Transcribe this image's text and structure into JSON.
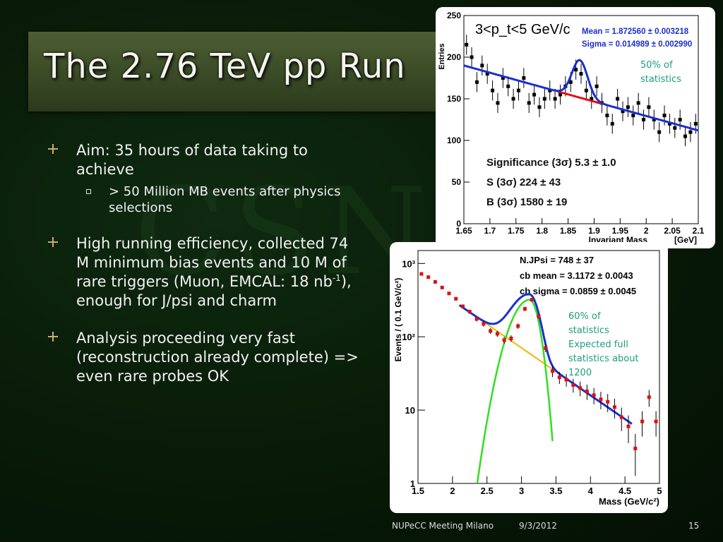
{
  "slide": {
    "title": "The 2.76 TeV pp Run",
    "watermark": "CSN",
    "bullets": [
      {
        "text": "Aim: 35 hours of data taking to achieve",
        "sub": "> 50 Million MB events after physics selections"
      },
      {
        "text_before_sup": "High running efficiency, collected 74 M minimum bias events and 10 M of rare triggers (Muon, EMCAL: 18 nb",
        "sup": "-1",
        "text_after_sup": "), enough for J/psi and charm"
      },
      {
        "text": "Analysis proceeding very fast (reconstruction already complete) => even rare probes OK"
      }
    ],
    "annotations": {
      "plot1": [
        "50% of",
        "statistics"
      ],
      "plot2": [
        "60% of",
        "statistics",
        "Expected full",
        "statistics about",
        "1200"
      ]
    },
    "footer": {
      "meeting": "NUPeCC Meeting Milano",
      "date": "9/3/2012",
      "page": "15"
    },
    "colors": {
      "annotation": "#1a9e7a",
      "accent": "#c9b16a"
    }
  },
  "chart_data": [
    {
      "type": "scatter",
      "title": "3<p_t<5 GeV/c",
      "xlabel": "Invariant Mass",
      "xunit": "[GeV]",
      "ylabel": "Entries",
      "xlim": [
        1.65,
        2.1
      ],
      "ylim": [
        0,
        250
      ],
      "xticks": [
        "1.65",
        "1.7",
        "1.75",
        "1.8",
        "1.85",
        "1.9",
        "1.95",
        "2",
        "2.05",
        "2.1"
      ],
      "yticks": [
        "0",
        "50",
        "100",
        "150",
        "200",
        "250"
      ],
      "stats": [
        "Mean = 1.872560 ± 0.003218",
        "Sigma = 0.014989 ± 0.002990"
      ],
      "fit_text": [
        "Significance (3σ) 5.3 ± 1.0",
        "S (3σ) 224 ± 43",
        "B (3σ) 1580 ± 19"
      ],
      "x": [
        1.655,
        1.665,
        1.675,
        1.685,
        1.695,
        1.705,
        1.715,
        1.725,
        1.735,
        1.745,
        1.755,
        1.765,
        1.775,
        1.785,
        1.795,
        1.805,
        1.815,
        1.825,
        1.835,
        1.845,
        1.855,
        1.865,
        1.875,
        1.885,
        1.895,
        1.905,
        1.915,
        1.925,
        1.935,
        1.945,
        1.955,
        1.965,
        1.975,
        1.985,
        1.995,
        2.005,
        2.015,
        2.025,
        2.035,
        2.045,
        2.055,
        2.065,
        2.075,
        2.085,
        2.095
      ],
      "y": [
        215,
        200,
        170,
        190,
        180,
        160,
        145,
        175,
        165,
        150,
        160,
        175,
        145,
        155,
        140,
        150,
        160,
        150,
        155,
        165,
        170,
        185,
        180,
        160,
        150,
        165,
        145,
        130,
        120,
        150,
        135,
        140,
        130,
        145,
        125,
        140,
        125,
        110,
        130,
        120,
        115,
        125,
        105,
        110,
        120
      ],
      "yerr": 12,
      "fit_peak": {
        "mean": 1.87256,
        "sigma": 0.014989,
        "amp": 45
      },
      "background": {
        "y_at_xmin": 190,
        "y_at_xmax": 112
      }
    },
    {
      "type": "scatter",
      "xlabel": "Mass (GeV/c²)",
      "ylabel": "Events / ( 0.1 GeV/c²)",
      "log_y": true,
      "xlim": [
        1.5,
        5
      ],
      "ylim": [
        1,
        1500
      ],
      "xticks": [
        "1.5",
        "2",
        "2.5",
        "3",
        "3.5",
        "4",
        "4.5",
        "5"
      ],
      "yticks": [
        "1",
        "10",
        "10²",
        "10³"
      ],
      "stats": [
        "N.JPsi = 748 ± 37",
        "cb mean = 3.1172 ± 0.0043",
        "cb sigma = 0.0859 ± 0.0045"
      ],
      "x": [
        1.55,
        1.65,
        1.75,
        1.85,
        1.95,
        2.05,
        2.15,
        2.25,
        2.35,
        2.45,
        2.55,
        2.65,
        2.75,
        2.85,
        2.95,
        3.05,
        3.15,
        3.25,
        3.35,
        3.45,
        3.55,
        3.65,
        3.75,
        3.85,
        3.95,
        4.05,
        4.15,
        4.25,
        4.35,
        4.45,
        4.55,
        4.65,
        4.75,
        4.85,
        4.95
      ],
      "y": [
        720,
        650,
        560,
        470,
        390,
        330,
        260,
        220,
        175,
        150,
        120,
        110,
        90,
        95,
        140,
        240,
        320,
        190,
        70,
        34,
        28,
        26,
        22,
        20,
        18,
        16,
        14,
        13,
        11,
        8,
        6,
        3,
        7,
        15,
        7
      ],
      "signal_peak": {
        "mean": 3.1172,
        "sigma": 0.0859,
        "amp": 320
      },
      "bkg": {
        "x0": 2.1,
        "y0": 270,
        "x1": 4.6,
        "y1": 6.5
      }
    }
  ]
}
